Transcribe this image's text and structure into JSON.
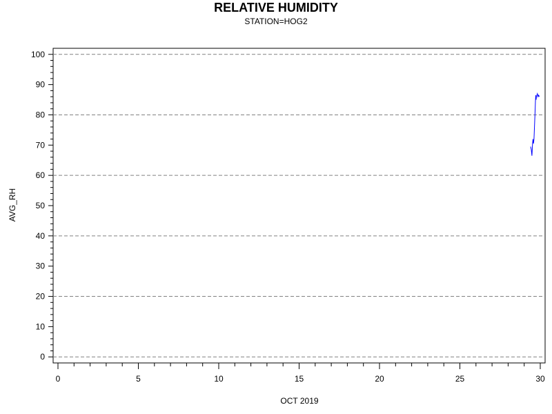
{
  "chart_data": {
    "type": "line",
    "title": "RELATIVE HUMIDITY",
    "subtitle": "STATION=HOG2",
    "xlabel": "OCT 2019",
    "ylabel": "AVG_RH",
    "xlim": [
      -0.3,
      30.3
    ],
    "ylim": [
      -2,
      102
    ],
    "x_ticks": [
      0,
      5,
      10,
      15,
      20,
      25,
      30
    ],
    "y_ticks": [
      0,
      10,
      20,
      30,
      40,
      50,
      60,
      70,
      80,
      90,
      100
    ],
    "y_gridlines": [
      0,
      20,
      40,
      60,
      80,
      100
    ],
    "grid": "dashed horizontal at 0, 20, 40, 60, 80, 100",
    "series": [
      {
        "color": "#0000ff",
        "x": [
          29.4,
          29.44,
          29.48,
          29.52,
          29.55,
          29.58,
          29.61,
          29.64,
          29.67,
          29.7,
          29.72,
          29.74,
          29.76,
          29.79,
          29.82,
          29.86,
          29.9,
          29.94
        ],
        "y": [
          69.5,
          68.5,
          66.5,
          70.5,
          72.0,
          70.5,
          72.0,
          76.0,
          80.0,
          84.5,
          86.5,
          85.0,
          86.0,
          86.5,
          87.0,
          86.0,
          86.5,
          86.0
        ]
      }
    ]
  }
}
